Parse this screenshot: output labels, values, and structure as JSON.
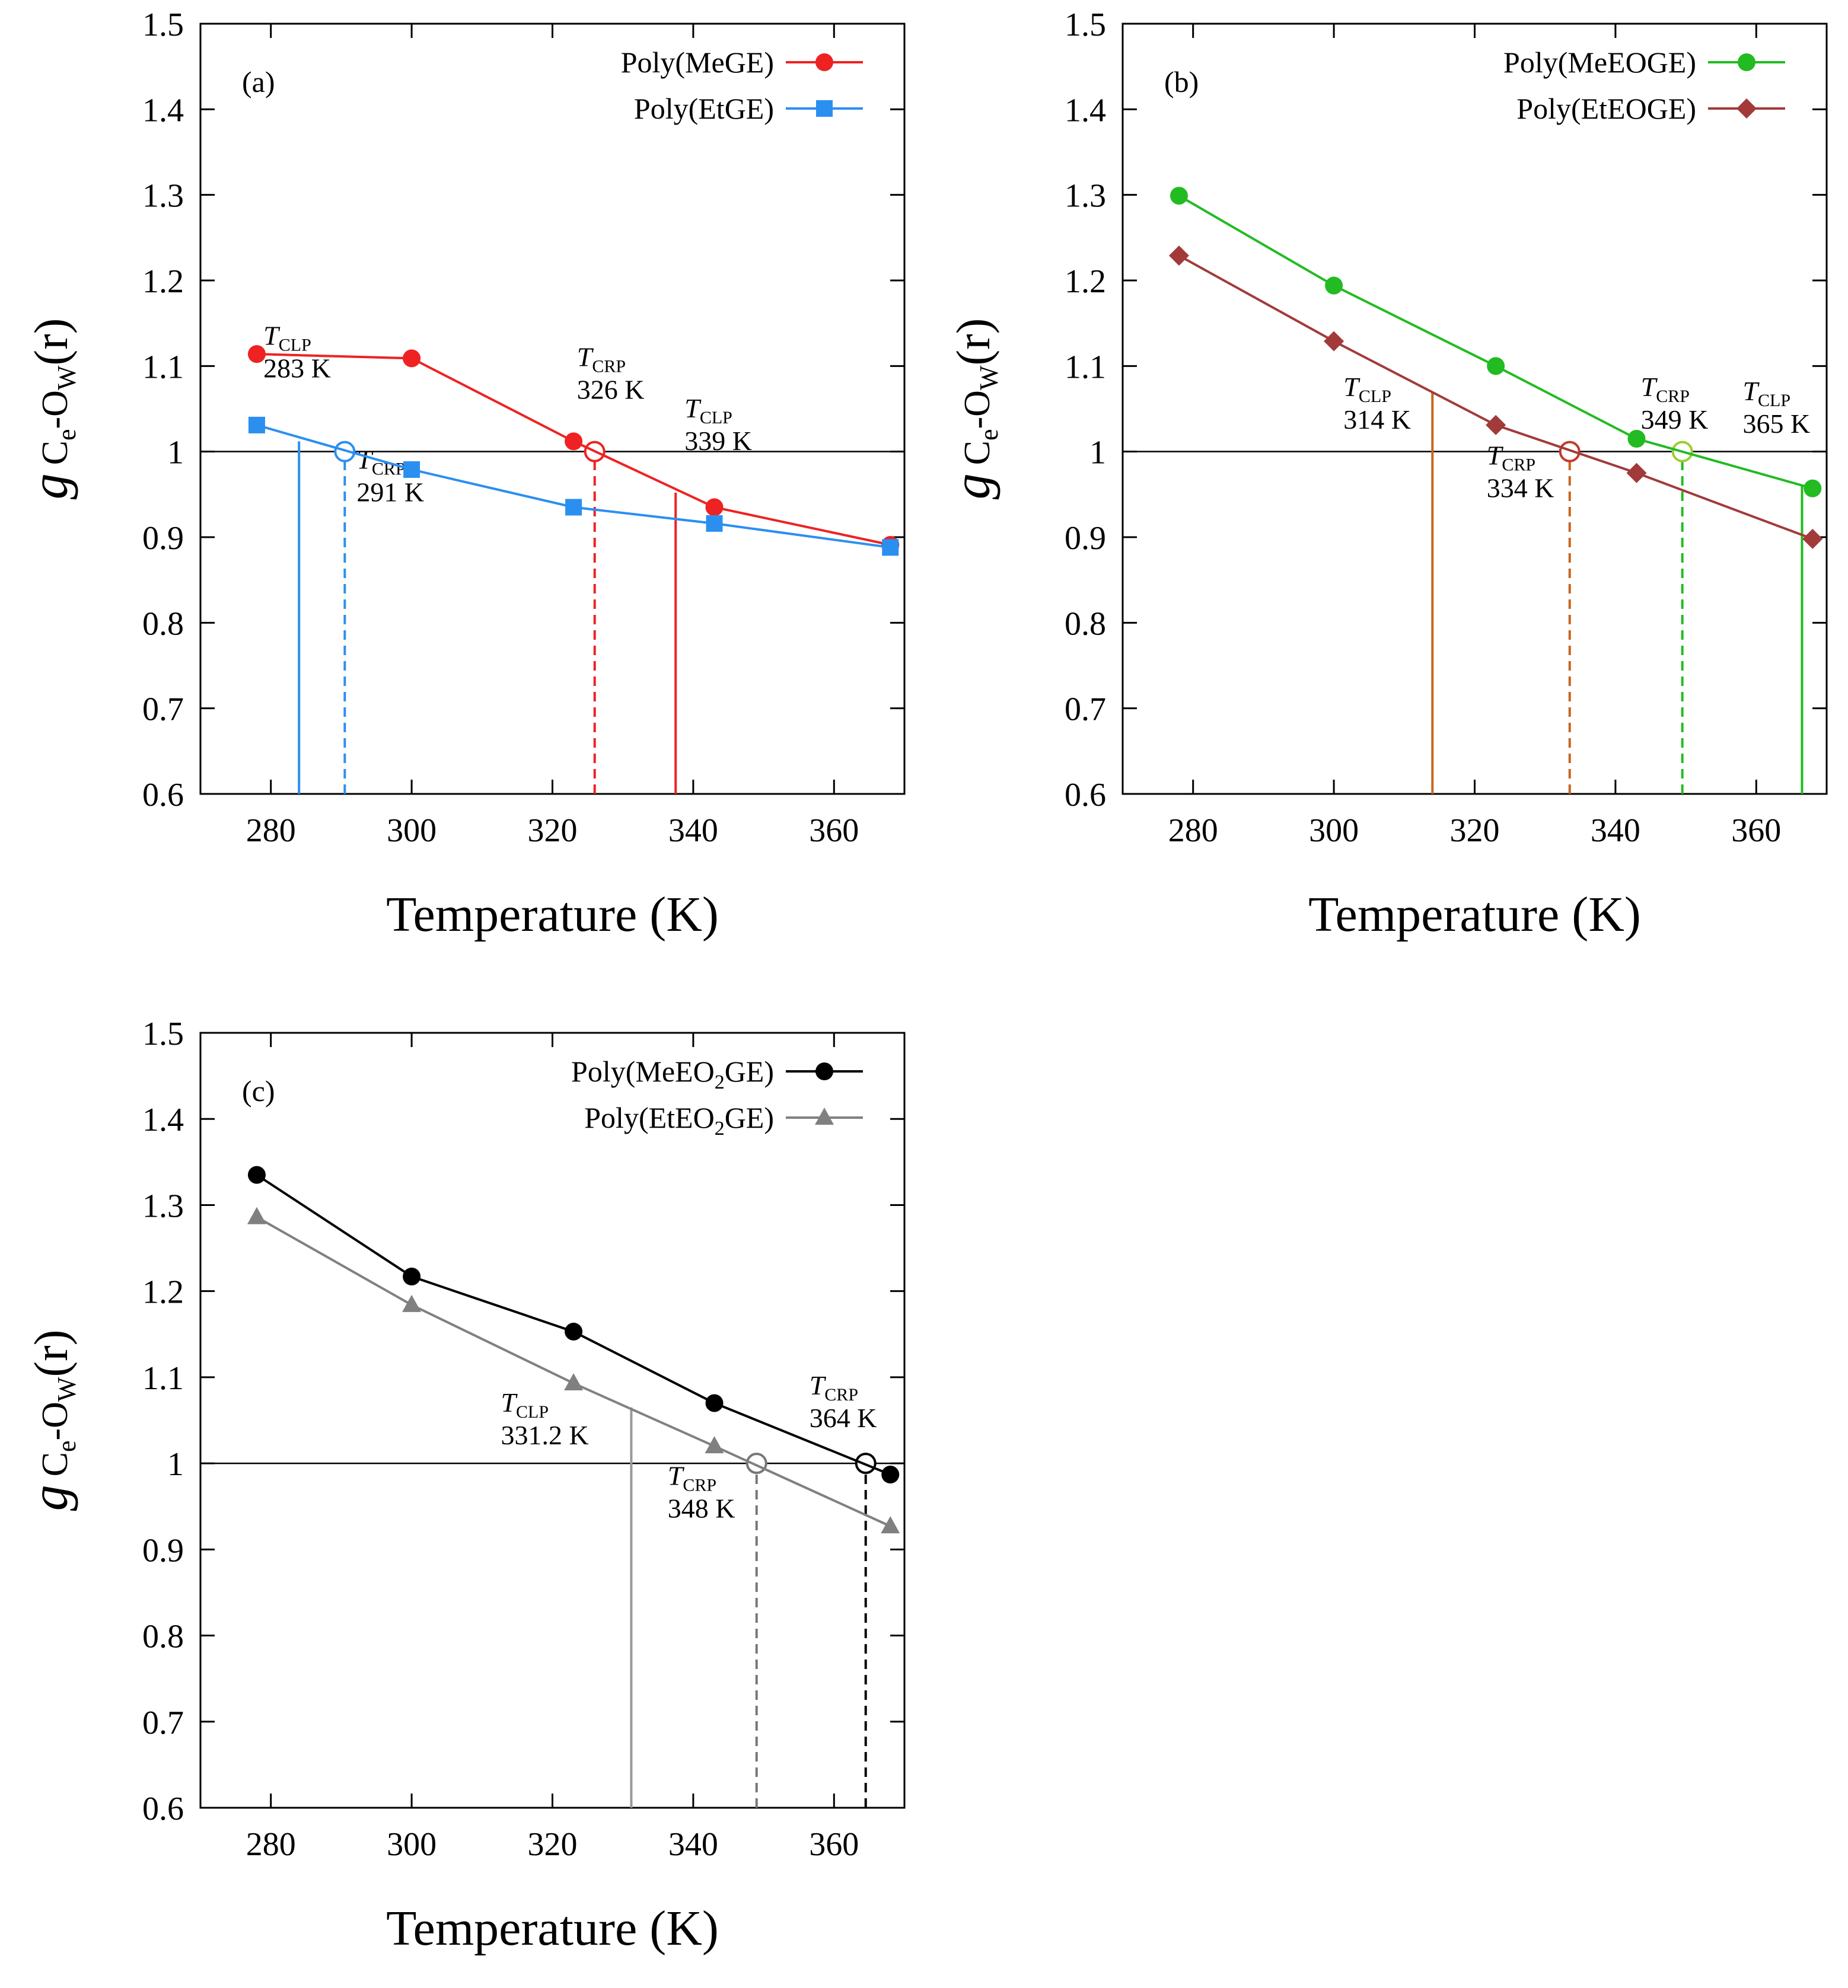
{
  "figure": {
    "ytitle_main": "g",
    "ytitle_sub1": "C",
    "ytitle_sub2": "e",
    "ytitle_mid": "-O",
    "ytitle_sub3": "W",
    "ytitle_tail": "(r)"
  },
  "chart_data": [
    {
      "panel": "(a)",
      "type": "line",
      "xlabel": "Temperature (K)",
      "ylabel": "g Ce-OW(r)",
      "xlim": [
        270,
        370
      ],
      "ylim": [
        0.6,
        1.5
      ],
      "xticks": [
        280,
        300,
        320,
        340,
        360
      ],
      "xtick_labels": [
        "280",
        "300",
        "320",
        "340",
        "360"
      ],
      "yticks": [
        0.6,
        0.7,
        0.8,
        0.9,
        1.0,
        1.1,
        1.2,
        1.3,
        1.4,
        1.5
      ],
      "ytick_labels": [
        "0.6",
        "0.7",
        "0.8",
        "0.9",
        "1",
        "1.1",
        "1.2",
        "1.3",
        "1.4",
        "1.5"
      ],
      "legend_position": "top-right",
      "reference_line": 1.0,
      "series": [
        {
          "name": "Poly(MeGE)",
          "color": "#ee2222",
          "marker": "circle",
          "x": [
            278,
            300,
            323,
            343,
            368
          ],
          "y": [
            1.114,
            1.109,
            1.012,
            0.935,
            0.891
          ]
        },
        {
          "name": "Poly(EtGE)",
          "color": "#2b8ff0",
          "marker": "square",
          "x": [
            278,
            300,
            323,
            343,
            368
          ],
          "y": [
            1.031,
            0.979,
            0.935,
            0.916,
            0.888
          ]
        }
      ],
      "annotations": [
        {
          "label": "T",
          "sub": "CLP",
          "value": "283 K",
          "x": 284,
          "y_top": 1.012,
          "style": "solid",
          "color": "#2b8ff0"
        },
        {
          "label": "T",
          "sub": "CRP",
          "value": "291 K",
          "x": 290.5,
          "y_top": 1.0,
          "style": "dashed",
          "color": "#2b8ff0",
          "circle": true
        },
        {
          "label": "T",
          "sub": "CRP",
          "value": "326 K",
          "x": 326,
          "y_top": 1.0,
          "style": "dashed",
          "color": "#ee2222",
          "circle": true
        },
        {
          "label": "T",
          "sub": "CLP",
          "value": "339 K",
          "x": 337.5,
          "y_top": 0.952,
          "style": "solid",
          "color": "#ee2222"
        }
      ]
    },
    {
      "panel": "(b)",
      "type": "line",
      "xlabel": "Temperature (K)",
      "ylabel": "g Ce-OW(r)",
      "xlim": [
        270,
        370
      ],
      "ylim": [
        0.6,
        1.5
      ],
      "xticks": [
        280,
        300,
        320,
        340,
        360
      ],
      "xtick_labels": [
        "280",
        "300",
        "320",
        "340",
        "360"
      ],
      "yticks": [
        0.6,
        0.7,
        0.8,
        0.9,
        1.0,
        1.1,
        1.2,
        1.3,
        1.4,
        1.5
      ],
      "ytick_labels": [
        "0.6",
        "0.7",
        "0.8",
        "0.9",
        "1",
        "1.1",
        "1.2",
        "1.3",
        "1.4",
        "1.5"
      ],
      "legend_position": "top-right",
      "reference_line": 1.0,
      "series": [
        {
          "name": "Poly(MeEOGE)",
          "color": "#22bb22",
          "marker": "circle",
          "x": [
            278,
            300,
            323,
            343,
            368
          ],
          "y": [
            1.299,
            1.194,
            1.1,
            1.015,
            0.957
          ]
        },
        {
          "name": "Poly(EtEOGE)",
          "color": "#a23a3a",
          "marker": "diamond",
          "x": [
            278,
            300,
            323,
            343,
            368
          ],
          "y": [
            1.229,
            1.129,
            1.031,
            0.975,
            0.898
          ]
        }
      ],
      "annotations": [
        {
          "label": "T",
          "sub": "CLP",
          "value": "314 K",
          "x": 314,
          "y_top": 1.07,
          "style": "solid",
          "color": "#c8641e"
        },
        {
          "label": "T",
          "sub": "CRP",
          "value": "334 K",
          "x": 333.5,
          "y_top": 1.0,
          "style": "dashed",
          "color": "#c8641e",
          "circle": true,
          "circle_color": "#c0392b"
        },
        {
          "label": "T",
          "sub": "CRP",
          "value": "349 K",
          "x": 349.5,
          "y_top": 1.0,
          "style": "dashed",
          "color": "#22bb22",
          "circle": true,
          "circle_color": "#9acd32"
        },
        {
          "label": "T",
          "sub": "CLP",
          "value": "365 K",
          "x": 366.5,
          "y_top": 0.96,
          "style": "solid",
          "color": "#22bb22"
        }
      ]
    },
    {
      "panel": "(c)",
      "type": "line",
      "xlabel": "Temperature (K)",
      "ylabel": "g Ce-OW(r)",
      "xlim": [
        270,
        370
      ],
      "ylim": [
        0.6,
        1.5
      ],
      "xticks": [
        280,
        300,
        320,
        340,
        360
      ],
      "xtick_labels": [
        "280",
        "300",
        "320",
        "340",
        "360"
      ],
      "yticks": [
        0.6,
        0.7,
        0.8,
        0.9,
        1.0,
        1.1,
        1.2,
        1.3,
        1.4,
        1.5
      ],
      "ytick_labels": [
        "0.6",
        "0.7",
        "0.8",
        "0.9",
        "1",
        "1.1",
        "1.2",
        "1.3",
        "1.4",
        "1.5"
      ],
      "legend_position": "top-right",
      "reference_line": 1.0,
      "series": [
        {
          "name": "Poly(MeEO2GE)",
          "name_parts": [
            "Poly(MeEO",
            "2",
            "GE)"
          ],
          "color": "#000000",
          "marker": "circle",
          "x": [
            278,
            300,
            323,
            343,
            368
          ],
          "y": [
            1.335,
            1.217,
            1.153,
            1.07,
            0.987
          ]
        },
        {
          "name": "Poly(EtEO2GE)",
          "name_parts": [
            "Poly(EtEO",
            "2",
            "GE)"
          ],
          "color": "#808080",
          "marker": "triangle",
          "x": [
            278,
            300,
            323,
            343,
            368
          ],
          "y": [
            1.286,
            1.184,
            1.093,
            1.02,
            0.927
          ]
        }
      ],
      "annotations": [
        {
          "label": "T",
          "sub": "CLP",
          "value": "331.2 K",
          "x": 331.2,
          "y_top": 1.065,
          "style": "solid",
          "color": "#999999"
        },
        {
          "label": "T",
          "sub": "CRP",
          "value": "348 K",
          "x": 349,
          "y_top": 1.0,
          "style": "dashed",
          "color": "#777777",
          "circle": true
        },
        {
          "label": "T",
          "sub": "CRP",
          "value": "364 K",
          "x": 364.5,
          "y_top": 1.0,
          "style": "dashed",
          "color": "#000000",
          "circle": true
        }
      ]
    }
  ]
}
